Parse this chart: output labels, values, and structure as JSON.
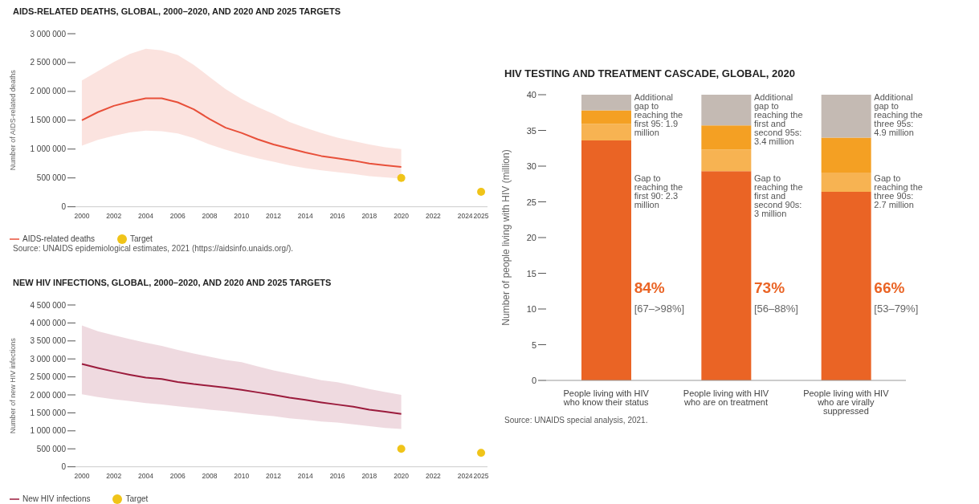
{
  "chart_data": [
    {
      "type": "line",
      "title": "AIDS-RELATED DEATHS, GLOBAL, 2000–2020, AND 2020 AND 2025 TARGETS",
      "ylabel": "Number of AIDS-related deaths",
      "x": [
        2000,
        2001,
        2002,
        2003,
        2004,
        2005,
        2006,
        2007,
        2008,
        2009,
        2010,
        2011,
        2012,
        2013,
        2014,
        2015,
        2016,
        2017,
        2018,
        2019,
        2020,
        2025
      ],
      "xlim": [
        1999.6,
        2025.4
      ],
      "xticks": [
        2000,
        2002,
        2004,
        2006,
        2008,
        2010,
        2012,
        2014,
        2016,
        2018,
        2020,
        2022,
        2024,
        2025
      ],
      "ylim": [
        0,
        3000000
      ],
      "yticks": [
        {
          "value": 0,
          "label": "0"
        },
        {
          "value": 500000,
          "label": "500 000"
        },
        {
          "value": 1000000,
          "label": "1 000 000"
        },
        {
          "value": 1500000,
          "label": "1 500 000"
        },
        {
          "value": 2000000,
          "label": "2 000 000"
        },
        {
          "value": 2500000,
          "label": "2 500 000"
        },
        {
          "value": 3000000,
          "label": "3 000 000"
        }
      ],
      "legend": "bottom left",
      "series": [
        {
          "name": "AIDS-related deaths",
          "color": "#e8503a",
          "values": [
            1500000,
            1640000,
            1750000,
            1820000,
            1880000,
            1880000,
            1810000,
            1690000,
            1520000,
            1370000,
            1280000,
            1170000,
            1080000,
            1010000,
            940000,
            880000,
            840000,
            800000,
            750000,
            720000,
            690000,
            null
          ],
          "lower": [
            1060000,
            1160000,
            1230000,
            1290000,
            1320000,
            1310000,
            1270000,
            1190000,
            1080000,
            990000,
            910000,
            840000,
            780000,
            720000,
            670000,
            630000,
            600000,
            570000,
            530000,
            510000,
            490000,
            null
          ],
          "upper": [
            2190000,
            2350000,
            2510000,
            2650000,
            2740000,
            2710000,
            2630000,
            2460000,
            2250000,
            2040000,
            1870000,
            1730000,
            1610000,
            1470000,
            1370000,
            1280000,
            1200000,
            1140000,
            1080000,
            1030000,
            1000000,
            null
          ]
        },
        {
          "type": "scatter",
          "name": "Target",
          "color": "#f0c419",
          "values": [
            null,
            null,
            null,
            null,
            null,
            null,
            null,
            null,
            null,
            null,
            null,
            null,
            null,
            null,
            null,
            null,
            null,
            null,
            null,
            null,
            500000,
            260000
          ]
        }
      ],
      "annotations": [
        "Source: UNAIDS epidemiological estimates, 2021 (https://aidsinfo.unaids.org/)."
      ]
    },
    {
      "type": "line",
      "title": "NEW HIV INFECTIONS, GLOBAL, 2000–2020, AND 2020 AND 2025 TARGETS",
      "ylabel": "Number of new HIV infections",
      "x": [
        2000,
        2001,
        2002,
        2003,
        2004,
        2005,
        2006,
        2007,
        2008,
        2009,
        2010,
        2011,
        2012,
        2013,
        2014,
        2015,
        2016,
        2017,
        2018,
        2019,
        2020,
        2025
      ],
      "xlim": [
        1999.6,
        2025.4
      ],
      "xticks": [
        2000,
        2002,
        2004,
        2006,
        2008,
        2010,
        2012,
        2014,
        2016,
        2018,
        2020,
        2022,
        2024,
        2025
      ],
      "ylim": [
        0,
        4500000
      ],
      "yticks": [
        {
          "value": 0,
          "label": "0"
        },
        {
          "value": 500000,
          "label": "500 000"
        },
        {
          "value": 1000000,
          "label": "1 000 000"
        },
        {
          "value": 1500000,
          "label": "1 500 000"
        },
        {
          "value": 2000000,
          "label": "2 000 000"
        },
        {
          "value": 2500000,
          "label": "2 500 000"
        },
        {
          "value": 3000000,
          "label": "3 000 000"
        },
        {
          "value": 3500000,
          "label": "3 500 000"
        },
        {
          "value": 4000000,
          "label": "4 000 000"
        },
        {
          "value": 4500000,
          "label": "4 500 000"
        }
      ],
      "legend": "bottom left",
      "series": [
        {
          "name": "New HIV infections",
          "color": "#9b1b3c",
          "values": [
            2860000,
            2750000,
            2650000,
            2560000,
            2480000,
            2440000,
            2360000,
            2300000,
            2250000,
            2200000,
            2140000,
            2070000,
            2000000,
            1920000,
            1860000,
            1790000,
            1730000,
            1670000,
            1590000,
            1530000,
            1470000,
            null
          ],
          "lower": [
            2020000,
            1940000,
            1880000,
            1830000,
            1770000,
            1730000,
            1680000,
            1640000,
            1590000,
            1550000,
            1500000,
            1450000,
            1410000,
            1350000,
            1310000,
            1260000,
            1230000,
            1180000,
            1130000,
            1080000,
            1050000,
            null
          ],
          "upper": [
            3930000,
            3770000,
            3660000,
            3550000,
            3450000,
            3360000,
            3250000,
            3150000,
            3060000,
            2970000,
            2910000,
            2790000,
            2680000,
            2590000,
            2500000,
            2410000,
            2350000,
            2260000,
            2160000,
            2080000,
            2000000,
            null
          ]
        },
        {
          "type": "scatter",
          "name": "Target",
          "color": "#f0c419",
          "values": [
            null,
            null,
            null,
            null,
            null,
            null,
            null,
            null,
            null,
            null,
            null,
            null,
            null,
            null,
            null,
            null,
            null,
            null,
            null,
            null,
            500000,
            390000
          ]
        }
      ]
    },
    {
      "type": "bar",
      "stacked": true,
      "title": "HIV TESTING AND TREATMENT CASCADE, GLOBAL, 2020",
      "ylabel": "Number of people living with HIV (million)",
      "categories": [
        "People living with HIV who know their status",
        "People living with HIV who are on treatment",
        "People living with HIV who are virally suppressed"
      ],
      "ylim": [
        0,
        40
      ],
      "yticks": [
        0,
        5,
        10,
        15,
        20,
        25,
        30,
        35,
        40
      ],
      "series": [
        {
          "color": "#ea6425",
          "values": [
            33.6,
            29.3,
            26.4
          ]
        },
        {
          "color": "#f7b352",
          "values": [
            2.3,
            3.0,
            2.7
          ]
        },
        {
          "color": "#f4a023",
          "values": [
            1.9,
            3.4,
            4.9
          ]
        },
        {
          "color": "#c4bab3",
          "values": [
            2.3,
            4.3,
            6.1
          ]
        }
      ],
      "annotations": [
        "Additional gap to reaching the first 95: 1.9 million",
        "Gap to reaching the first 90: 2.3 million",
        "84%",
        "[67–>98%]",
        "Additional gap to reaching the first and second 95s: 3.4 million",
        "Gap to reaching the first and second 90s: 3 million",
        "73%",
        "[56–88%]",
        "Additional gap to reaching the three 95s: 4.9 million",
        "Gap to reaching the three 90s: 2.7 million",
        "66%",
        "[53–79%]",
        "Source: UNAIDS special analysis, 2021."
      ]
    }
  ]
}
